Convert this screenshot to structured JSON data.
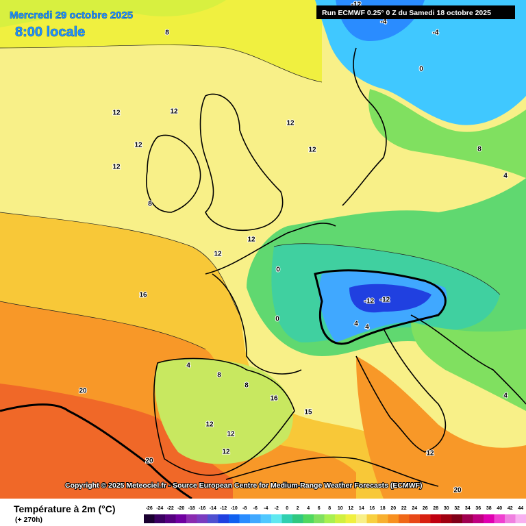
{
  "header": {
    "date": "Mercredi 29 octobre 2025",
    "time": "8:00 locale",
    "run": "Run ECMWF 0.25° 0 Z du Samedi 18 octobre 2025"
  },
  "footer": {
    "copyright": "Copyright © 2025 Meteociel.fr - Source European Centre for Medium-Range Weather Forecasts (ECMWF)"
  },
  "legend": {
    "title": "Température à 2m (°C)",
    "lead_time": "(+ 270h)",
    "ticks": [
      -26,
      -24,
      -22,
      -20,
      -18,
      -16,
      -14,
      -12,
      -10,
      -8,
      -6,
      -4,
      -2,
      0,
      2,
      4,
      6,
      8,
      10,
      12,
      14,
      16,
      18,
      20,
      22,
      24,
      26,
      28,
      30,
      32,
      34,
      36,
      38,
      40,
      42,
      44
    ],
    "colors": [
      "#1a0030",
      "#3a0060",
      "#55007f",
      "#7000a0",
      "#8a2bb0",
      "#7a3cc0",
      "#5050d0",
      "#2040e0",
      "#1060f0",
      "#2a8cff",
      "#40a8ff",
      "#50c8ff",
      "#60e8f0",
      "#30d0b0",
      "#30c880",
      "#50d860",
      "#80e060",
      "#a8f050",
      "#d0f040",
      "#f0f040",
      "#f8f088",
      "#f8d040",
      "#f8b030",
      "#f89020",
      "#f06818",
      "#e84818",
      "#d82010",
      "#c00010",
      "#a00010",
      "#800018",
      "#a00050",
      "#c00080",
      "#e000b0",
      "#f040d0",
      "#f080e0",
      "#f8b0f0"
    ]
  },
  "map_labels": [
    "8",
    "12",
    "12",
    "12",
    "12",
    "8",
    "12",
    "12",
    "12",
    "12",
    "16",
    "20",
    "20",
    "20",
    "-12",
    "-12",
    "-12",
    "-4",
    "-4",
    "0",
    "0",
    "0",
    "4",
    "4",
    "4",
    "8",
    "8",
    "12",
    "12",
    "12",
    "15",
    "16",
    "12",
    "4",
    "8",
    "4"
  ]
}
